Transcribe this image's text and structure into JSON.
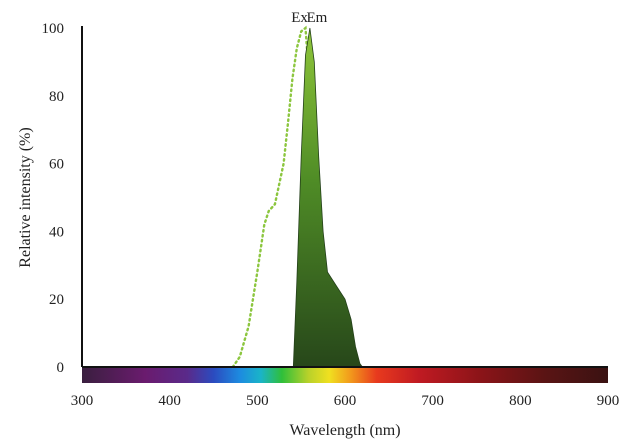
{
  "chart_data": {
    "type": "area",
    "title": "",
    "xlabel": "Wavelength (nm)",
    "ylabel": "Relative intensity (%)",
    "xlim": [
      300,
      900
    ],
    "ylim": [
      0,
      100
    ],
    "x_ticks": [
      300,
      400,
      500,
      600,
      700,
      800,
      900
    ],
    "y_ticks": [
      0,
      20,
      40,
      60,
      80,
      100
    ],
    "grid": false,
    "spectrum_bar": true,
    "series": [
      {
        "name": "Ex",
        "style": "dotted-line",
        "color": "#8cc63f",
        "x": [
          472,
          480,
          490,
          500,
          508,
          513,
          520,
          530,
          535,
          540,
          545,
          550,
          555,
          560,
          563,
          566,
          570,
          575
        ],
        "y": [
          0,
          3,
          12,
          28,
          42,
          46,
          48,
          60,
          72,
          85,
          94,
          99,
          100,
          82,
          55,
          25,
          8,
          0
        ]
      },
      {
        "name": "Em",
        "style": "filled-area",
        "color": "#2f5f16",
        "x": [
          541,
          545,
          550,
          555,
          560,
          565,
          570,
          575,
          580,
          590,
          600,
          607,
          612,
          617,
          620
        ],
        "y": [
          0,
          25,
          62,
          92,
          100,
          90,
          62,
          40,
          28,
          24,
          20,
          14,
          6,
          1,
          0
        ]
      }
    ]
  }
}
